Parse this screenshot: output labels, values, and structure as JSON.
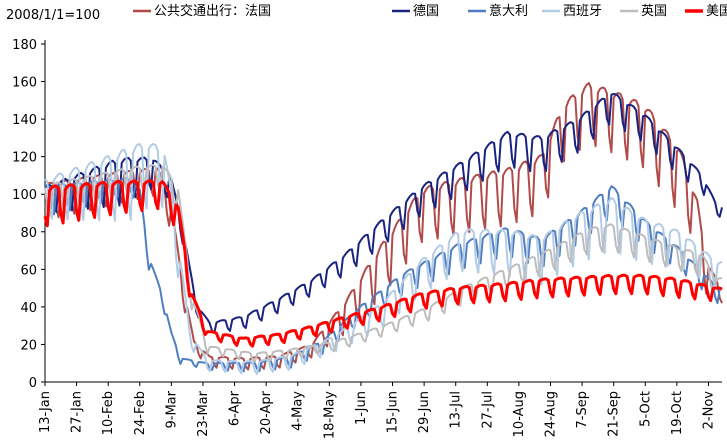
{
  "chart_data": {
    "type": "line",
    "title": "",
    "index_note": "2008/1/1=100",
    "xlabel": "",
    "ylabel": "",
    "ylim": [
      0,
      180
    ],
    "yticks": [
      0,
      20,
      40,
      60,
      80,
      100,
      120,
      140,
      160,
      180
    ],
    "xlim": [
      "2020-01-13",
      "2020-11-08"
    ],
    "grid": false,
    "legend_position": "top",
    "x_tick_labels": [
      "13-Jan",
      "27-Jan",
      "10-Feb",
      "24-Feb",
      "9-Mar",
      "23-Mar",
      "6-Apr",
      "20-Apr",
      "4-May",
      "18-May",
      "1-Jun",
      "15-Jun",
      "29-Jun",
      "13-Jul",
      "27-Jul",
      "10-Aug",
      "24-Aug",
      "7-Sep",
      "21-Sep",
      "5-Oct",
      "19-Oct",
      "2-Nov"
    ],
    "x_tick_dates": [
      "2020-01-13",
      "2020-01-27",
      "2020-02-10",
      "2020-02-24",
      "2020-03-09",
      "2020-03-23",
      "2020-04-06",
      "2020-04-20",
      "2020-05-04",
      "2020-05-18",
      "2020-06-01",
      "2020-06-15",
      "2020-06-29",
      "2020-07-13",
      "2020-07-27",
      "2020-08-10",
      "2020-08-24",
      "2020-09-07",
      "2020-09-21",
      "2020-10-05",
      "2020-10-19",
      "2020-11-02"
    ],
    "series": [
      {
        "name": "公共交通出行：法国",
        "color": "#b04b49",
        "width": 2,
        "base": [
          [
            "2020-01-13",
            100
          ],
          [
            "2020-02-20",
            108
          ],
          [
            "2020-03-03",
            110
          ],
          [
            "2020-03-09",
            90
          ],
          [
            "2020-03-14",
            50
          ],
          [
            "2020-03-19",
            20
          ],
          [
            "2020-03-26",
            12
          ],
          [
            "2020-04-10",
            11
          ],
          [
            "2020-04-25",
            12
          ],
          [
            "2020-05-10",
            18
          ],
          [
            "2020-05-25",
            38
          ],
          [
            "2020-06-10",
            65
          ],
          [
            "2020-06-28",
            95
          ],
          [
            "2020-07-15",
            100
          ],
          [
            "2020-08-05",
            105
          ],
          [
            "2020-08-20",
            112
          ],
          [
            "2020-08-30",
            140
          ],
          [
            "2020-09-10",
            150
          ],
          [
            "2020-09-22",
            145
          ],
          [
            "2020-10-05",
            138
          ],
          [
            "2020-10-20",
            115
          ],
          [
            "2020-10-28",
            90
          ],
          [
            "2020-11-01",
            60
          ],
          [
            "2020-11-06",
            50
          ]
        ],
        "amp": [
          [
            "2020-01-13",
            14
          ],
          [
            "2020-03-10",
            10
          ],
          [
            "2020-03-20",
            4
          ],
          [
            "2020-05-10",
            5
          ],
          [
            "2020-06-10",
            20
          ],
          [
            "2020-08-20",
            22
          ],
          [
            "2020-10-20",
            25
          ],
          [
            "2020-11-06",
            8
          ]
        ]
      },
      {
        "name": "德国",
        "color": "#1a237e",
        "width": 2,
        "base": [
          [
            "2020-01-13",
            100
          ],
          [
            "2020-02-15",
            112
          ],
          [
            "2020-03-01",
            115
          ],
          [
            "2020-03-09",
            105
          ],
          [
            "2020-03-14",
            80
          ],
          [
            "2020-03-20",
            40
          ],
          [
            "2020-03-26",
            30
          ],
          [
            "2020-04-10",
            33
          ],
          [
            "2020-04-25",
            42
          ],
          [
            "2020-05-10",
            52
          ],
          [
            "2020-05-25",
            65
          ],
          [
            "2020-06-10",
            82
          ],
          [
            "2020-06-28",
            100
          ],
          [
            "2020-07-15",
            112
          ],
          [
            "2020-08-05",
            128
          ],
          [
            "2020-08-20",
            125
          ],
          [
            "2020-09-05",
            135
          ],
          [
            "2020-09-20",
            150
          ],
          [
            "2020-10-05",
            138
          ],
          [
            "2020-10-20",
            120
          ],
          [
            "2020-10-30",
            108
          ],
          [
            "2020-11-06",
            92
          ]
        ],
        "amp": [
          [
            "2020-01-13",
            10
          ],
          [
            "2020-02-15",
            18
          ],
          [
            "2020-03-05",
            10
          ],
          [
            "2020-03-20",
            4
          ],
          [
            "2020-05-10",
            6
          ],
          [
            "2020-06-10",
            10
          ],
          [
            "2020-08-20",
            14
          ],
          [
            "2020-10-20",
            10
          ],
          [
            "2020-11-06",
            4
          ]
        ]
      },
      {
        "name": "意大利",
        "color": "#4f7ec2",
        "width": 2,
        "base": [
          [
            "2020-01-13",
            100
          ],
          [
            "2020-02-20",
            106
          ],
          [
            "2020-02-24",
            100
          ],
          [
            "2020-02-28",
            65
          ],
          [
            "2020-03-05",
            45
          ],
          [
            "2020-03-09",
            25
          ],
          [
            "2020-03-13",
            12
          ],
          [
            "2020-03-25",
            9
          ],
          [
            "2020-04-15",
            9
          ],
          [
            "2020-05-01",
            12
          ],
          [
            "2020-05-15",
            20
          ],
          [
            "2020-06-01",
            38
          ],
          [
            "2020-06-20",
            55
          ],
          [
            "2020-07-15",
            70
          ],
          [
            "2020-08-05",
            78
          ],
          [
            "2020-08-20",
            72
          ],
          [
            "2020-09-05",
            85
          ],
          [
            "2020-09-20",
            100
          ],
          [
            "2020-10-05",
            82
          ],
          [
            "2020-10-20",
            68
          ],
          [
            "2020-11-06",
            48
          ]
        ],
        "amp": [
          [
            "2020-01-13",
            12
          ],
          [
            "2020-02-24",
            6
          ],
          [
            "2020-03-15",
            2
          ],
          [
            "2020-05-15",
            5
          ],
          [
            "2020-07-15",
            10
          ],
          [
            "2020-09-20",
            12
          ],
          [
            "2020-11-06",
            6
          ]
        ]
      },
      {
        "name": "西班牙",
        "color": "#b3cce6",
        "width": 2,
        "base": [
          [
            "2020-01-13",
            102
          ],
          [
            "2020-02-15",
            112
          ],
          [
            "2020-02-28",
            118
          ],
          [
            "2020-03-06",
            115
          ],
          [
            "2020-03-12",
            70
          ],
          [
            "2020-03-17",
            25
          ],
          [
            "2020-03-25",
            10
          ],
          [
            "2020-04-15",
            9
          ],
          [
            "2020-05-01",
            12
          ],
          [
            "2020-05-20",
            22
          ],
          [
            "2020-06-10",
            38
          ],
          [
            "2020-06-28",
            60
          ],
          [
            "2020-07-15",
            75
          ],
          [
            "2020-08-05",
            74
          ],
          [
            "2020-08-20",
            70
          ],
          [
            "2020-09-05",
            82
          ],
          [
            "2020-09-20",
            90
          ],
          [
            "2020-10-05",
            80
          ],
          [
            "2020-10-20",
            75
          ],
          [
            "2020-11-06",
            60
          ]
        ],
        "amp": [
          [
            "2020-01-13",
            15
          ],
          [
            "2020-02-20",
            28
          ],
          [
            "2020-03-06",
            22
          ],
          [
            "2020-03-20",
            4
          ],
          [
            "2020-05-20",
            6
          ],
          [
            "2020-07-15",
            16
          ],
          [
            "2020-09-20",
            20
          ],
          [
            "2020-11-06",
            10
          ]
        ]
      },
      {
        "name": "英国",
        "color": "#bdbdbd",
        "width": 2,
        "base": [
          [
            "2020-01-13",
            100
          ],
          [
            "2020-02-20",
            110
          ],
          [
            "2020-03-05",
            112
          ],
          [
            "2020-03-12",
            100
          ],
          [
            "2020-03-18",
            45
          ],
          [
            "2020-03-25",
            18
          ],
          [
            "2020-04-15",
            14
          ],
          [
            "2020-05-01",
            16
          ],
          [
            "2020-05-20",
            20
          ],
          [
            "2020-06-10",
            28
          ],
          [
            "2020-07-01",
            38
          ],
          [
            "2020-07-20",
            50
          ],
          [
            "2020-08-10",
            60
          ],
          [
            "2020-08-25",
            68
          ],
          [
            "2020-09-10",
            78
          ],
          [
            "2020-09-20",
            80
          ],
          [
            "2020-10-05",
            74
          ],
          [
            "2020-10-20",
            68
          ],
          [
            "2020-10-30",
            65
          ],
          [
            "2020-11-06",
            52
          ]
        ],
        "amp": [
          [
            "2020-01-13",
            12
          ],
          [
            "2020-03-10",
            10
          ],
          [
            "2020-03-25",
            3
          ],
          [
            "2020-06-10",
            4
          ],
          [
            "2020-08-10",
            8
          ],
          [
            "2020-09-20",
            10
          ],
          [
            "2020-11-06",
            8
          ]
        ]
      },
      {
        "name": "美国",
        "color": "#ff0000",
        "width": 3,
        "base": [
          [
            "2020-01-13",
            98
          ],
          [
            "2020-02-15",
            102
          ],
          [
            "2020-03-05",
            103
          ],
          [
            "2020-03-12",
            90
          ],
          [
            "2020-03-18",
            45
          ],
          [
            "2020-03-25",
            26
          ],
          [
            "2020-04-10",
            22
          ],
          [
            "2020-04-25",
            24
          ],
          [
            "2020-05-10",
            28
          ],
          [
            "2020-05-25",
            33
          ],
          [
            "2020-06-10",
            38
          ],
          [
            "2020-06-28",
            45
          ],
          [
            "2020-07-15",
            48
          ],
          [
            "2020-08-05",
            50
          ],
          [
            "2020-08-20",
            52
          ],
          [
            "2020-09-05",
            53
          ],
          [
            "2020-09-20",
            54
          ],
          [
            "2020-10-05",
            54
          ],
          [
            "2020-10-20",
            52
          ],
          [
            "2020-11-06",
            48
          ]
        ],
        "amp": [
          [
            "2020-01-13",
            15
          ],
          [
            "2020-03-10",
            10
          ],
          [
            "2020-03-25",
            3
          ],
          [
            "2020-05-10",
            4
          ],
          [
            "2020-06-28",
            6
          ],
          [
            "2020-08-20",
            7
          ],
          [
            "2020-10-20",
            7
          ],
          [
            "2020-11-06",
            5
          ]
        ]
      }
    ]
  }
}
